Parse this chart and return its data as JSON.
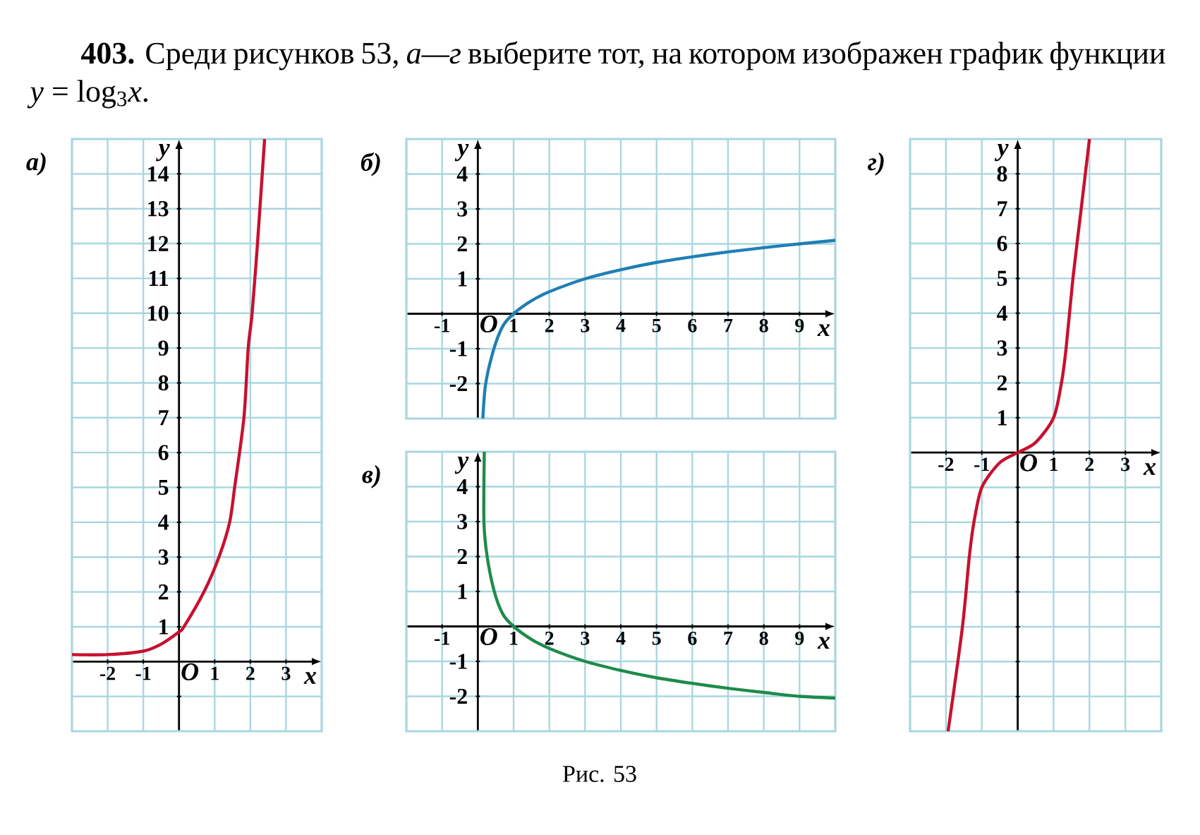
{
  "chart_data": [
    {
      "type": "line",
      "title": "а)",
      "xlabel": "x",
      "ylabel": "y",
      "color": "#c8102e",
      "grid": true,
      "annotations": [
        "O",
        "**403.** Среди рисунков 53, *а—г* выберите тот, на котором изображен график функции *y* = log$_{3}$*x*.",
        "Рис. 53"
      ],
      "xlim": [
        -3,
        4
      ],
      "ylim": [
        -2,
        15
      ],
      "xticks": [
        -2,
        -1,
        1,
        2,
        3
      ],
      "yticks": [
        {
          "value": -1,
          "label": null
        },
        1,
        2,
        3,
        4,
        5,
        6,
        7,
        8,
        9,
        10,
        11,
        12,
        13,
        14
      ],
      "x": [
        -3,
        -2,
        -1,
        -0.5,
        0,
        0.14,
        0.7,
        1.12,
        1.42,
        1.56,
        1.82,
        1.94,
        2.05,
        2.2,
        2.4
      ],
      "values": [
        0.2,
        0.2,
        0.3,
        0.5,
        0.85,
        1,
        2,
        3,
        4,
        5,
        7,
        9,
        10,
        12,
        15
      ]
    },
    {
      "type": "line",
      "title": "б)",
      "xlabel": "x",
      "ylabel": "y",
      "color": "#1f7fb4",
      "grid": true,
      "annotations": [
        "O"
      ],
      "xlim": [
        -2,
        10
      ],
      "ylim": [
        -3,
        5
      ],
      "xticks": [
        -1,
        1,
        2,
        3,
        4,
        5,
        6,
        7,
        8,
        9
      ],
      "yticks": [
        -2,
        -1,
        1,
        2,
        3,
        4
      ],
      "x": [
        0.14,
        0.22,
        0.45,
        0.7,
        1,
        1.5,
        2,
        3,
        4,
        5,
        6,
        7,
        8,
        9,
        10
      ],
      "values": [
        -3,
        -2,
        -1,
        -0.35,
        0,
        0.37,
        0.63,
        1,
        1.26,
        1.47,
        1.63,
        1.77,
        1.89,
        2,
        2.1
      ]
    },
    {
      "type": "line",
      "title": "в)",
      "xlabel": "x",
      "ylabel": "y",
      "color": "#1e8b4a",
      "grid": true,
      "annotations": [
        "O"
      ],
      "xlim": [
        -2,
        10
      ],
      "ylim": [
        -3,
        5
      ],
      "xticks": [
        -1,
        1,
        2,
        3,
        4,
        5,
        6,
        7,
        8,
        9
      ],
      "yticks": [
        -2,
        -1,
        1,
        2,
        3,
        4
      ],
      "x": [
        0.18,
        0.17,
        0.26,
        0.46,
        0.7,
        1,
        1.5,
        2,
        3,
        4,
        5,
        6,
        7,
        8,
        9,
        10
      ],
      "values": [
        5,
        3,
        2,
        1,
        0.35,
        0,
        -0.37,
        -0.63,
        -1,
        -1.26,
        -1.47,
        -1.63,
        -1.77,
        -1.89,
        -2,
        -2.05
      ]
    },
    {
      "type": "line",
      "title": "г)",
      "xlabel": "x",
      "ylabel": "y",
      "color": "#c8102e",
      "grid": true,
      "annotations": [
        "O"
      ],
      "xlim": [
        -3,
        4
      ],
      "ylim": [
        -8,
        9
      ],
      "xticks": [
        -2,
        -1,
        1,
        2,
        3
      ],
      "yticks": [
        {
          "value": -7,
          "label": null
        },
        {
          "value": -6,
          "label": null
        },
        {
          "value": -5,
          "label": null
        },
        {
          "value": -4,
          "label": null
        },
        {
          "value": -3,
          "label": null
        },
        {
          "value": -2,
          "label": null
        },
        {
          "value": -1,
          "label": null
        },
        1,
        2,
        3,
        4,
        5,
        6,
        7,
        8
      ],
      "x": [
        -1.94,
        -1.54,
        -1.35,
        -1.22,
        -1,
        -0.5,
        0,
        0.5,
        1,
        1.22,
        1.35,
        1.54,
        1.77,
        2
      ],
      "values": [
        -8,
        -5,
        -3,
        -2,
        -1,
        -0.29,
        0,
        0.29,
        1,
        2,
        3,
        5,
        7,
        9
      ]
    }
  ]
}
